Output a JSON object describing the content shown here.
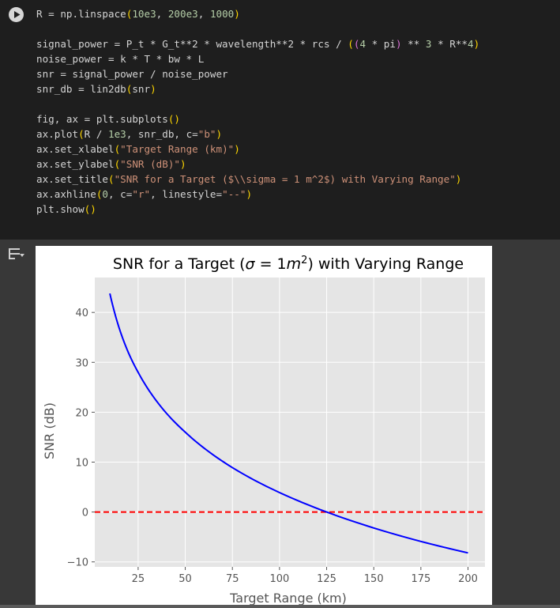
{
  "code_cell": {
    "lines": [
      [
        {
          "t": "R = np.linspace",
          "c": "kw"
        },
        {
          "t": "(",
          "c": "par"
        },
        {
          "t": "10e3",
          "c": "num"
        },
        {
          "t": ", ",
          "c": "kw"
        },
        {
          "t": "200e3",
          "c": "num"
        },
        {
          "t": ", ",
          "c": "kw"
        },
        {
          "t": "1000",
          "c": "num"
        },
        {
          "t": ")",
          "c": "par"
        }
      ],
      [],
      [
        {
          "t": "signal_power = P_t * G_t**2 * wavelength**2 * rcs / ",
          "c": "kw"
        },
        {
          "t": "(",
          "c": "par"
        },
        {
          "t": "(",
          "c": "par2"
        },
        {
          "t": "4",
          "c": "num"
        },
        {
          "t": " * pi",
          "c": "kw"
        },
        {
          "t": ")",
          "c": "par2"
        },
        {
          "t": " ** ",
          "c": "kw"
        },
        {
          "t": "3",
          "c": "num"
        },
        {
          "t": " * R**",
          "c": "kw"
        },
        {
          "t": "4",
          "c": "num"
        },
        {
          "t": ")",
          "c": "par"
        }
      ],
      [
        {
          "t": "noise_power = k * T * bw * L",
          "c": "kw"
        }
      ],
      [
        {
          "t": "snr = signal_power / noise_power",
          "c": "kw"
        }
      ],
      [
        {
          "t": "snr_db = lin2db",
          "c": "kw"
        },
        {
          "t": "(",
          "c": "par"
        },
        {
          "t": "snr",
          "c": "kw"
        },
        {
          "t": ")",
          "c": "par"
        }
      ],
      [],
      [
        {
          "t": "fig, ax = plt.subplots",
          "c": "kw"
        },
        {
          "t": "()",
          "c": "par"
        }
      ],
      [
        {
          "t": "ax.plot",
          "c": "kw"
        },
        {
          "t": "(",
          "c": "par"
        },
        {
          "t": "R / ",
          "c": "kw"
        },
        {
          "t": "1e3",
          "c": "num"
        },
        {
          "t": ", snr_db, c=",
          "c": "kw"
        },
        {
          "t": "\"b\"",
          "c": "str"
        },
        {
          "t": ")",
          "c": "par"
        }
      ],
      [
        {
          "t": "ax.set_xlabel",
          "c": "kw"
        },
        {
          "t": "(",
          "c": "par"
        },
        {
          "t": "\"Target Range (km)\"",
          "c": "str"
        },
        {
          "t": ")",
          "c": "par"
        }
      ],
      [
        {
          "t": "ax.set_ylabel",
          "c": "kw"
        },
        {
          "t": "(",
          "c": "par"
        },
        {
          "t": "\"SNR (dB)\"",
          "c": "str"
        },
        {
          "t": ")",
          "c": "par"
        }
      ],
      [
        {
          "t": "ax.set_title",
          "c": "kw"
        },
        {
          "t": "(",
          "c": "par"
        },
        {
          "t": "\"SNR for a Target ($\\\\sigma = 1 m^2$) with Varying Range\"",
          "c": "str"
        },
        {
          "t": ")",
          "c": "par"
        }
      ],
      [
        {
          "t": "ax.axhline",
          "c": "kw"
        },
        {
          "t": "(",
          "c": "par"
        },
        {
          "t": "0",
          "c": "num"
        },
        {
          "t": ", c=",
          "c": "kw"
        },
        {
          "t": "\"r\"",
          "c": "str"
        },
        {
          "t": ", linestyle=",
          "c": "kw"
        },
        {
          "t": "\"--\"",
          "c": "str"
        },
        {
          "t": ")",
          "c": "par"
        }
      ],
      [
        {
          "t": "plt.show",
          "c": "kw"
        },
        {
          "t": "()",
          "c": "par"
        }
      ]
    ]
  },
  "icons": {
    "run": "play-circle-icon",
    "output_toggle": "output-toggle-icon"
  },
  "colors": {
    "series": "#0000ff",
    "reference_line": "#ff0000",
    "plot_background": "#e5e5e5",
    "grid": "#ffffff"
  },
  "chart_data": {
    "type": "line",
    "title_parts": {
      "pre": "SNR for a Target (",
      "sigma": "σ",
      "eq": " = 1",
      "m": "m",
      "exp": "2",
      "post": ") with Varying Range"
    },
    "xlabel": "Target Range (km)",
    "ylabel": "SNR (dB)",
    "xlim": [
      2,
      209
    ],
    "ylim": [
      -11,
      47
    ],
    "xticks": [
      25,
      50,
      75,
      100,
      125,
      150,
      175,
      200
    ],
    "yticks": [
      -10,
      0,
      10,
      20,
      30,
      40
    ],
    "ytick_labels": [
      "−10",
      "0",
      "10",
      "20",
      "30",
      "40"
    ],
    "grid": true,
    "series": [
      {
        "x": [
          10,
          12,
          15,
          20,
          25,
          30,
          40,
          50,
          60,
          75,
          100,
          125,
          150,
          175,
          200
        ],
        "y": [
          43.8,
          40.7,
          36.8,
          31.8,
          28.0,
          24.8,
          19.8,
          16.0,
          12.8,
          8.9,
          3.9,
          0.0,
          -3.2,
          -5.9,
          -8.2
        ],
        "color": "#0000ff"
      }
    ],
    "reference_line": {
      "y": 0,
      "color": "#ff0000",
      "linestyle": "dashed"
    }
  }
}
